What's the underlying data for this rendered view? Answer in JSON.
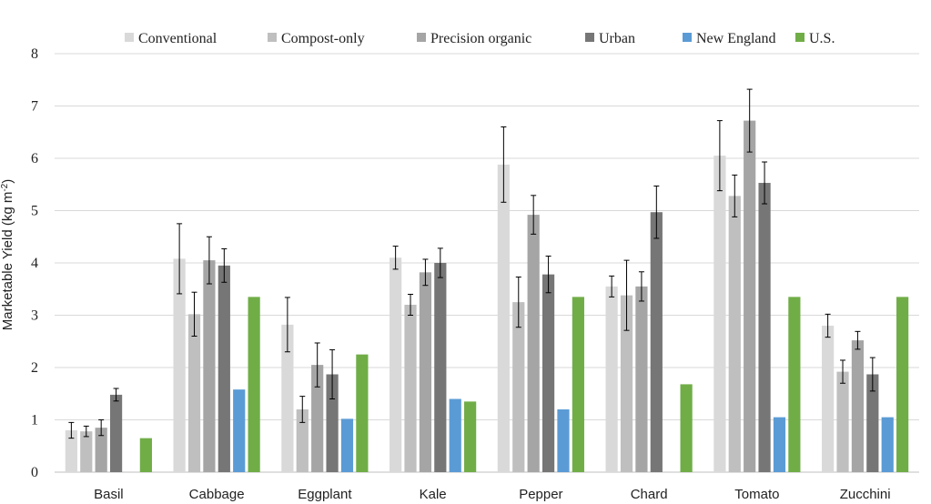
{
  "chart_data": {
    "type": "bar",
    "title": "",
    "xlabel": "",
    "ylabel": "Marketable Yield (kg m",
    "ylabel_sup": "-2",
    "ylabel_close": ")",
    "ylim": [
      0,
      8
    ],
    "yticks": [
      "0",
      "1",
      "2",
      "3",
      "4",
      "5",
      "6",
      "7",
      "8"
    ],
    "grid": true,
    "legend_position": "top",
    "categories": [
      "Basil",
      "Cabbage",
      "Eggplant",
      "Kale",
      "Pepper",
      "Chard",
      "Tomato",
      "Zucchini"
    ],
    "series": [
      {
        "name": "Conventional",
        "color": "#d9d9d9",
        "values": [
          0.8,
          4.08,
          2.82,
          4.1,
          5.88,
          3.55,
          6.05,
          2.8
        ],
        "errors": [
          0.15,
          0.67,
          0.52,
          0.22,
          0.72,
          0.2,
          0.67,
          0.22
        ]
      },
      {
        "name": "Compost-only",
        "color": "#bfbfbf",
        "values": [
          0.78,
          3.02,
          1.2,
          3.2,
          3.25,
          3.38,
          5.28,
          1.92
        ],
        "errors": [
          0.1,
          0.42,
          0.25,
          0.2,
          0.48,
          0.67,
          0.4,
          0.22
        ]
      },
      {
        "name": "Precision organic",
        "color": "#a5a5a5",
        "values": [
          0.85,
          4.05,
          2.05,
          3.82,
          4.92,
          3.55,
          6.72,
          2.52
        ],
        "errors": [
          0.15,
          0.45,
          0.42,
          0.25,
          0.37,
          0.28,
          0.6,
          0.17
        ]
      },
      {
        "name": "Urban",
        "color": "#767676",
        "values": [
          1.48,
          3.95,
          1.87,
          4.0,
          3.78,
          4.97,
          5.53,
          1.87
        ],
        "errors": [
          0.12,
          0.32,
          0.47,
          0.28,
          0.35,
          0.5,
          0.4,
          0.32
        ]
      },
      {
        "name": "New England",
        "color": "#5b9bd5",
        "values": [
          null,
          1.58,
          1.02,
          1.4,
          1.2,
          null,
          1.05,
          1.05
        ],
        "errors": null
      },
      {
        "name": "U.S.",
        "color": "#70ad47",
        "values": [
          0.65,
          3.35,
          2.25,
          1.35,
          3.35,
          1.68,
          3.35,
          3.35
        ],
        "errors": null
      }
    ]
  }
}
